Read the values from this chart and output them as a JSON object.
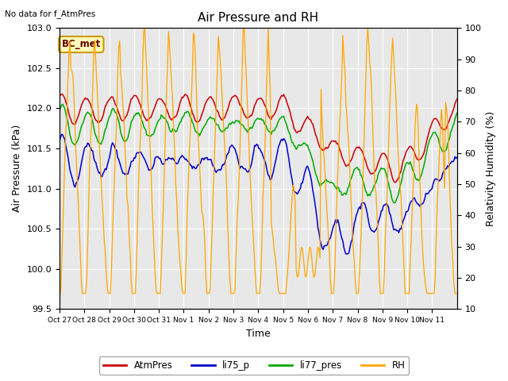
{
  "title": "Air Pressure and RH",
  "top_left_text": "No data for f_AtmPres",
  "annotation_box": "BC_met",
  "xlabel": "Time",
  "ylabel_left": "Air Pressure (kPa)",
  "ylabel_right": "Relativity Humidity (%)",
  "ylim_left": [
    99.5,
    103.0
  ],
  "ylim_right": [
    10,
    100
  ],
  "yticks_left": [
    99.5,
    100.0,
    100.5,
    101.0,
    101.5,
    102.0,
    102.5,
    103.0
  ],
  "yticks_right": [
    10,
    20,
    30,
    40,
    50,
    60,
    70,
    80,
    90,
    100
  ],
  "xtick_labels": [
    "Oct 27",
    "Oct 28",
    "Oct 29",
    "Oct 30",
    "Oct 31",
    "Nov 1",
    "Nov 2",
    "Nov 3",
    "Nov 4",
    "Nov 5",
    "Nov 6",
    "Nov 7",
    "Nov 8",
    "Nov 9",
    "Nov 10",
    "Nov 11"
  ],
  "colors": {
    "AtmPres": "#cc0000",
    "li75_p": "#0000cc",
    "li77_pres": "#00aa00",
    "RH": "#ffa500"
  },
  "legend_labels": [
    "AtmPres",
    "li75_p",
    "li77_pres",
    "RH"
  ],
  "background_color": "#ffffff",
  "plot_bg_color": "#e8e8e8",
  "grid_color": "#ffffff",
  "title_fontsize": 11,
  "axis_fontsize": 9,
  "tick_fontsize": 8
}
